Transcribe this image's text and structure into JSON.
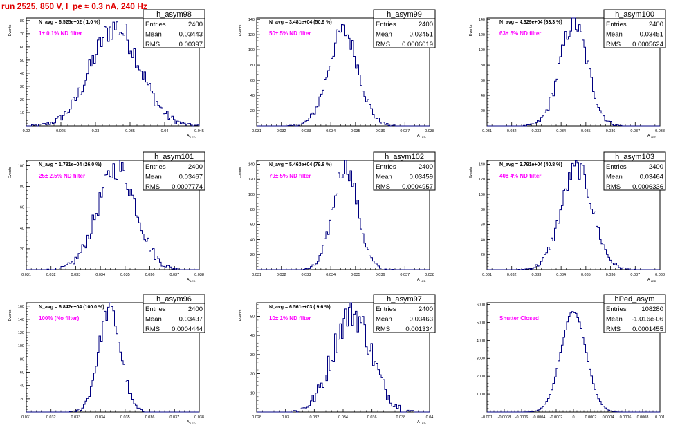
{
  "header": {
    "title": "run 2525,   850 V, I_pe ≈ 0.3 nA, 240 Hz"
  },
  "colors": {
    "histogram": "#000080",
    "annotation": "#ff00ff",
    "title": "#e00000",
    "frame": "#000000"
  },
  "chart_data": [
    {
      "type": "histogram",
      "name": "h_asym98",
      "stats": {
        "Entries": "2400",
        "Mean": "0.03443",
        "RMS": "0.00397"
      },
      "n_avg_label": "N_avg = 6.525e+02 ( 1.0 %)",
      "filter_label": "1± 0.1% ND filter",
      "ylabel": "Events",
      "xlabel": "A_LED",
      "xlim": [
        0.02,
        0.048
      ],
      "ylim": [
        0,
        82
      ],
      "x_ticks": [
        "0.02",
        "0.025",
        "0.03",
        "0.035",
        "0.04",
        "0.045"
      ],
      "y_ticks": [
        "10",
        "20",
        "30",
        "40",
        "50",
        "60",
        "70",
        "80"
      ],
      "mean": 0.03443,
      "rms": 0.00397,
      "peak": 75
    },
    {
      "type": "histogram",
      "name": "h_asym99",
      "stats": {
        "Entries": "2400",
        "Mean": "0.03451",
        "RMS": "0.0006019"
      },
      "n_avg_label": "N_avg = 3.481e+04 (50.9 %)",
      "filter_label": "50± 5% ND filter",
      "ylabel": "Events",
      "xlabel": "A_LED",
      "xlim": [
        0.031,
        0.038
      ],
      "ylim": [
        0,
        142
      ],
      "x_ticks": [
        "0.031",
        "0.032",
        "0.033",
        "0.034",
        "0.035",
        "0.036",
        "0.037",
        "0.038"
      ],
      "y_ticks": [
        "20",
        "40",
        "60",
        "80",
        "100",
        "120",
        "140"
      ],
      "mean": 0.03451,
      "rms": 0.0006019,
      "peak": 125
    },
    {
      "type": "histogram",
      "name": "h_asym100",
      "stats": {
        "Entries": "2400",
        "Mean": "0.03451",
        "RMS": "0.0005624"
      },
      "n_avg_label": "N_avg = 4.329e+04 (63.3 %)",
      "filter_label": "63± 5% ND filter",
      "ylabel": "Events",
      "xlabel": "A_LED",
      "xlim": [
        0.031,
        0.038
      ],
      "ylim": [
        0,
        142
      ],
      "x_ticks": [
        "0.031",
        "0.032",
        "0.033",
        "0.034",
        "0.035",
        "0.036",
        "0.037",
        "0.038"
      ],
      "y_ticks": [
        "20",
        "40",
        "60",
        "80",
        "100",
        "120",
        "140"
      ],
      "mean": 0.03451,
      "rms": 0.0005624,
      "peak": 135
    },
    {
      "type": "histogram",
      "name": "h_asym101",
      "stats": {
        "Entries": "2400",
        "Mean": "0.03467",
        "RMS": "0.0007774"
      },
      "n_avg_label": "N_avg = 1.781e+04 (26.0 %)",
      "filter_label": "25± 2.5% ND filter",
      "ylabel": "Events",
      "xlabel": "A_LED",
      "xlim": [
        0.031,
        0.038
      ],
      "ylim": [
        0,
        105
      ],
      "x_ticks": [
        "0.031",
        "0.032",
        "0.033",
        "0.034",
        "0.035",
        "0.036",
        "0.037",
        "0.038"
      ],
      "y_ticks": [
        "20",
        "40",
        "60",
        "80",
        "100"
      ],
      "mean": 0.03467,
      "rms": 0.0007774,
      "peak": 98
    },
    {
      "type": "histogram",
      "name": "h_asym102",
      "stats": {
        "Entries": "2400",
        "Mean": "0.03459",
        "RMS": "0.0004957"
      },
      "n_avg_label": "N_avg = 5.463e+04 (79.8 %)",
      "filter_label": "79± 5% ND filter",
      "ylabel": "Events",
      "xlabel": "A_LED",
      "xlim": [
        0.031,
        0.038
      ],
      "ylim": [
        0,
        145
      ],
      "x_ticks": [
        "0.031",
        "0.032",
        "0.033",
        "0.034",
        "0.035",
        "0.036",
        "0.037",
        "0.038"
      ],
      "y_ticks": [
        "20",
        "40",
        "60",
        "80",
        "100",
        "120",
        "140"
      ],
      "mean": 0.03459,
      "rms": 0.0004957,
      "peak": 138
    },
    {
      "type": "histogram",
      "name": "h_asym103",
      "stats": {
        "Entries": "2400",
        "Mean": "0.03464",
        "RMS": "0.0006336"
      },
      "n_avg_label": "N_avg = 2.791e+04 (40.8 %)",
      "filter_label": "40± 4% ND filter",
      "ylabel": "Events",
      "xlabel": "A_LED",
      "xlim": [
        0.031,
        0.038
      ],
      "ylim": [
        0,
        145
      ],
      "x_ticks": [
        "0.031",
        "0.032",
        "0.033",
        "0.034",
        "0.035",
        "0.036",
        "0.037",
        "0.038"
      ],
      "y_ticks": [
        "20",
        "40",
        "60",
        "80",
        "100",
        "120",
        "140"
      ],
      "mean": 0.03464,
      "rms": 0.0006336,
      "peak": 135
    },
    {
      "type": "histogram",
      "name": "h_asym96",
      "stats": {
        "Entries": "2400",
        "Mean": "0.03437",
        "RMS": "0.0004444"
      },
      "n_avg_label": "N_avg = 6.842e+04 (100.0 %)",
      "filter_label": "100% (No filter)",
      "ylabel": "Events",
      "xlabel": "A_LED",
      "xlim": [
        0.031,
        0.038
      ],
      "ylim": [
        0,
        165
      ],
      "x_ticks": [
        "0.031",
        "0.032",
        "0.033",
        "0.034",
        "0.035",
        "0.036",
        "0.037",
        "0.038"
      ],
      "y_ticks": [
        "20",
        "40",
        "60",
        "80",
        "100",
        "120",
        "140",
        "160"
      ],
      "mean": 0.03437,
      "rms": 0.0004444,
      "peak": 155
    },
    {
      "type": "histogram",
      "name": "h_asym97",
      "stats": {
        "Entries": "2400",
        "Mean": "0.03463",
        "RMS": "0.001334"
      },
      "n_avg_label": "N_avg = 6.561e+03 ( 9.6 %)",
      "filter_label": "10± 1% ND filter",
      "ylabel": "Events",
      "xlabel": "A_LED",
      "xlim": [
        0.028,
        0.04
      ],
      "ylim": [
        0,
        57
      ],
      "x_ticks": [
        "0.028",
        "0.03",
        "0.032",
        "0.034",
        "0.036",
        "0.038",
        "0.04"
      ],
      "y_ticks": [
        "10",
        "20",
        "30",
        "40",
        "50"
      ],
      "mean": 0.03463,
      "rms": 0.001334,
      "peak": 52
    },
    {
      "type": "histogram",
      "name": "hPed_asym",
      "stats": {
        "Entries": "108280",
        "Mean": "-1.016e-06",
        "RMS": "0.0001455"
      },
      "n_avg_label": "",
      "filter_label": "Shutter Closed",
      "ylabel": "",
      "xlabel": "",
      "xlim": [
        -0.001,
        0.001
      ],
      "ylim": [
        0,
        6100
      ],
      "x_ticks": [
        "-0.001",
        "-0.0008",
        "-0.0006",
        "-0.0004",
        "-0.0002",
        "0",
        "0.0002",
        "0.0004",
        "0.0006",
        "0.0008",
        "0.001"
      ],
      "y_ticks": [
        "1000",
        "2000",
        "3000",
        "4000",
        "5000",
        "6000"
      ],
      "mean": 0,
      "rms": 0.0001455,
      "peak": 5600
    }
  ]
}
